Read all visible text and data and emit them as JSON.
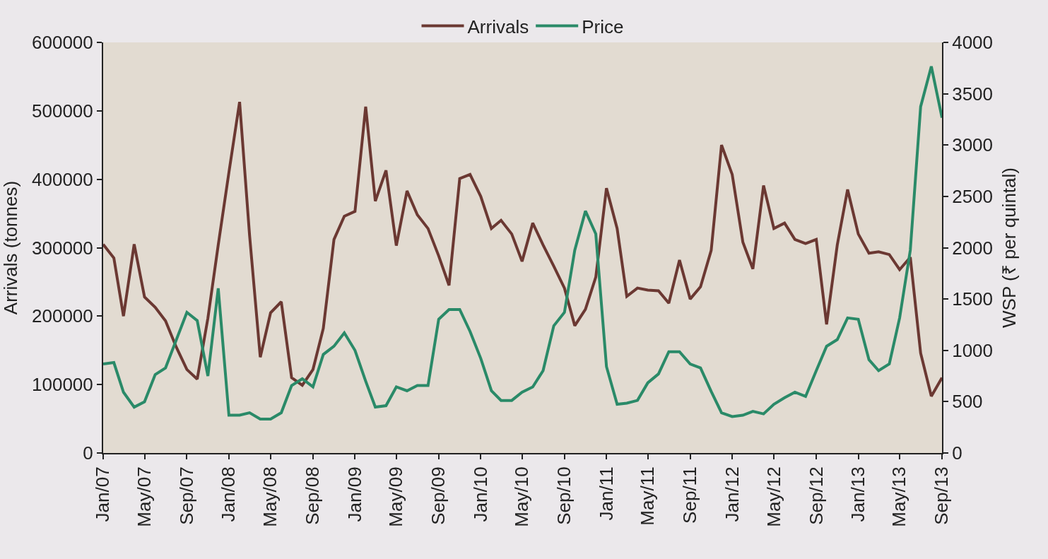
{
  "chart_data": {
    "type": "line",
    "x": [
      "2007-01",
      "2007-02",
      "2007-03",
      "2007-04",
      "2007-05",
      "2007-06",
      "2007-07",
      "2007-08",
      "2007-09",
      "2007-10",
      "2007-11",
      "2007-12",
      "2008-01",
      "2008-02",
      "2008-03",
      "2008-04",
      "2008-05",
      "2008-06",
      "2008-07",
      "2008-08",
      "2008-09",
      "2008-10",
      "2008-11",
      "2008-12",
      "2009-01",
      "2009-02",
      "2009-03",
      "2009-04",
      "2009-05",
      "2009-06",
      "2009-07",
      "2009-08",
      "2009-09",
      "2009-10",
      "2009-11",
      "2009-12",
      "2010-01",
      "2010-02",
      "2010-03",
      "2010-04",
      "2010-05",
      "2010-06",
      "2010-07",
      "2010-08",
      "2010-09",
      "2010-10",
      "2010-11",
      "2010-12",
      "2011-01",
      "2011-02",
      "2011-03",
      "2011-04",
      "2011-05",
      "2011-06",
      "2011-07",
      "2011-08",
      "2011-09",
      "2011-10",
      "2011-11",
      "2011-12",
      "2012-01",
      "2012-02",
      "2012-03",
      "2012-04",
      "2012-05",
      "2012-06",
      "2012-07",
      "2012-08",
      "2012-09",
      "2012-10",
      "2012-11",
      "2012-12",
      "2013-01",
      "2013-02",
      "2013-03",
      "2013-04",
      "2013-05",
      "2013-06",
      "2013-07",
      "2013-08",
      "2013-09"
    ],
    "series": [
      {
        "name": "Arrivals",
        "color": "#6b3832",
        "values": [
          305000,
          285000,
          200000,
          305000,
          228000,
          213000,
          193000,
          155000,
          122000,
          108000,
          197000,
          304000,
          410000,
          513000,
          318000,
          140000,
          205000,
          221000,
          110000,
          99000,
          122000,
          182000,
          312000,
          346000,
          353000,
          506000,
          368000,
          413000,
          303000,
          383000,
          348000,
          328000,
          288000,
          245000,
          401000,
          407000,
          375000,
          328000,
          340000,
          320000,
          280000,
          336000,
          304000,
          273000,
          241000,
          186000,
          210000,
          257000,
          387000,
          328000,
          229000,
          241000,
          238000,
          237000,
          219000,
          282000,
          225000,
          243000,
          296000,
          450000,
          407000,
          308000,
          269000,
          391000,
          328000,
          336000,
          312000,
          306000,
          312000,
          188000,
          304000,
          385000,
          320000,
          292000,
          294000,
          290000,
          268000,
          286000,
          146000,
          83000,
          110000
        ]
      },
      {
        "name": "Price",
        "color": "#2a8a68",
        "axis": "y2",
        "values": [
          867,
          881,
          592,
          447,
          499,
          764,
          829,
          1100,
          1370,
          1290,
          750,
          1604,
          368,
          368,
          392,
          330,
          330,
          392,
          657,
          723,
          644,
          960,
          1040,
          1170,
          1000,
          700,
          447,
          461,
          644,
          606,
          657,
          657,
          1303,
          1398,
          1398,
          1184,
          922,
          606,
          512,
          512,
          592,
          644,
          802,
          1239,
          1370,
          1976,
          2357,
          2134,
          842,
          475,
          486,
          512,
          684,
          770,
          987,
          987,
          867,
          829,
          600,
          392,
          355,
          368,
          406,
          381,
          475,
          539,
          592,
          551,
          802,
          1040,
          1105,
          1316,
          1303,
          909,
          802,
          867,
          1316,
          1976,
          3374,
          3766,
          3266
        ]
      }
    ],
    "ylabel": "Arrivals (tonnes)",
    "y2label": "WSP (₹ per quintal)",
    "xlim": [
      "2007-01",
      "2013-09"
    ],
    "xticks": [
      {
        "value": "2007-01",
        "label": "Jan/07"
      },
      {
        "value": "2007-05",
        "label": "May/07"
      },
      {
        "value": "2007-09",
        "label": "Sep/07"
      },
      {
        "value": "2008-01",
        "label": "Jan/08"
      },
      {
        "value": "2008-05",
        "label": "May/08"
      },
      {
        "value": "2008-09",
        "label": "Sep/08"
      },
      {
        "value": "2009-01",
        "label": "Jan/09"
      },
      {
        "value": "2009-05",
        "label": "May/09"
      },
      {
        "value": "2009-09",
        "label": "Sep/09"
      },
      {
        "value": "2010-01",
        "label": "Jan/10"
      },
      {
        "value": "2010-05",
        "label": "May/10"
      },
      {
        "value": "2010-09",
        "label": "Sep/10"
      },
      {
        "value": "2011-01",
        "label": "Jan/11"
      },
      {
        "value": "2011-05",
        "label": "May/11"
      },
      {
        "value": "2011-09",
        "label": "Sep/11"
      },
      {
        "value": "2012-01",
        "label": "Jan/12"
      },
      {
        "value": "2012-05",
        "label": "May/12"
      },
      {
        "value": "2012-09",
        "label": "Sep/12"
      },
      {
        "value": "2013-01",
        "label": "Jan/13"
      },
      {
        "value": "2013-05",
        "label": "May/13"
      },
      {
        "value": "2013-09",
        "label": "Sep/13"
      }
    ],
    "ylim": [
      0,
      600000
    ],
    "yticks": [
      0,
      100000,
      200000,
      300000,
      400000,
      500000,
      600000
    ],
    "y2lim": [
      0,
      4000
    ],
    "y2ticks": [
      0,
      500,
      1000,
      1500,
      2000,
      2500,
      3000,
      3500,
      4000
    ],
    "legend": "top",
    "grid": false,
    "marker": "none",
    "line_style": "solid"
  }
}
